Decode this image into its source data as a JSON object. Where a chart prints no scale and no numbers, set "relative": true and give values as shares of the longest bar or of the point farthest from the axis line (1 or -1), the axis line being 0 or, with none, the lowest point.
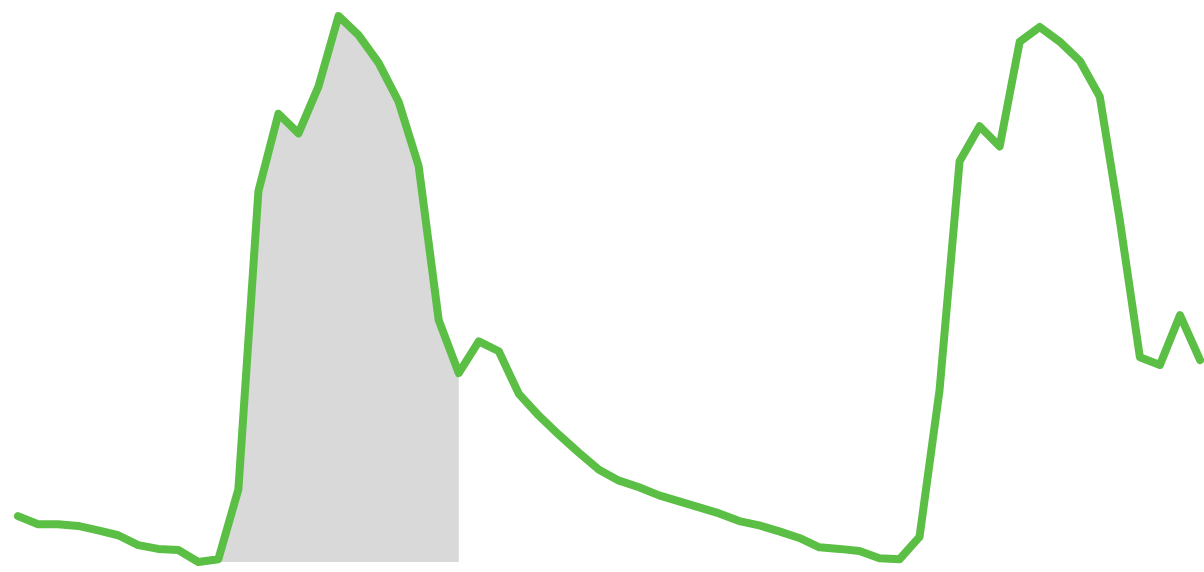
{
  "chart_data": {
    "type": "line",
    "relative": true,
    "marker": "none",
    "line_style": "solid",
    "categories": [
      null,
      null,
      null,
      null,
      null,
      null,
      null,
      null,
      null,
      null,
      null,
      null,
      null,
      null,
      null,
      null,
      null,
      null,
      null,
      null,
      null,
      null,
      null,
      null,
      null,
      null,
      null,
      null,
      null,
      null,
      null,
      null,
      null,
      null,
      null,
      null,
      null,
      null,
      null,
      null,
      null,
      null,
      null,
      null,
      null,
      null,
      null,
      null,
      null,
      null,
      null,
      null,
      null,
      null,
      null,
      null,
      null,
      null,
      null,
      null
    ],
    "series": [
      {
        "type": "area",
        "color": "#d9d9d9",
        "values": [
          null,
          null,
          null,
          null,
          null,
          null,
          null,
          null,
          null,
          null,
          0.005,
          0.133,
          0.679,
          0.821,
          0.785,
          0.871,
          1,
          0.965,
          0.914,
          0.843,
          0.725,
          0.443,
          0.346,
          null,
          null,
          null,
          null,
          null,
          null,
          null,
          null,
          null,
          null,
          null,
          null,
          null,
          null,
          null,
          null,
          null,
          null,
          null,
          null,
          null,
          null,
          null,
          null,
          null,
          null,
          null,
          null,
          null,
          null,
          null,
          null,
          null,
          null,
          null,
          null,
          null
        ]
      },
      {
        "color": "#5cbf45",
        "values": [
          0.084,
          0.069,
          0.069,
          0.066,
          0.058,
          0.049,
          0.031,
          0.024,
          0.022,
          0,
          0.005,
          0.133,
          0.679,
          0.821,
          0.785,
          0.871,
          1,
          0.965,
          0.914,
          0.843,
          0.725,
          0.443,
          0.346,
          0.404,
          0.386,
          0.308,
          0.268,
          0.233,
          0.2,
          0.169,
          0.149,
          0.137,
          0.122,
          0.111,
          0.1,
          0.089,
          0.075,
          0.067,
          0.056,
          0.044,
          0.027,
          0.024,
          0.02,
          0.007,
          0.005,
          0.046,
          0.315,
          0.734,
          0.798,
          0.761,
          0.953,
          0.98,
          0.953,
          0.918,
          0.852,
          0.625,
          0.375,
          0.361,
          0.452,
          0.37
        ]
      }
    ]
  }
}
